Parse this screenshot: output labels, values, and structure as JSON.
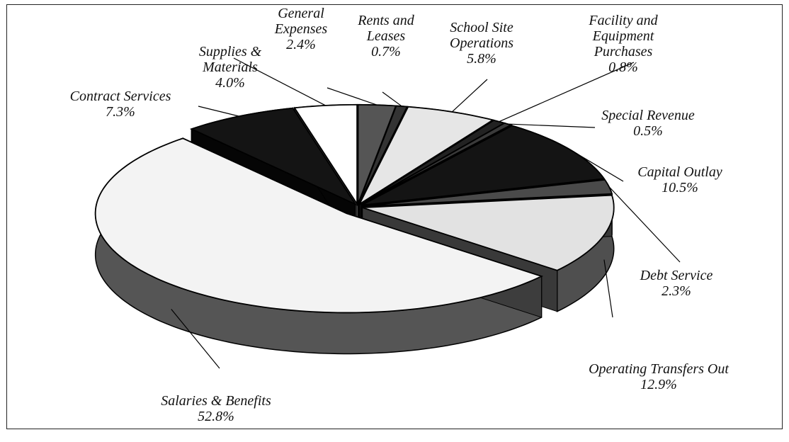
{
  "chart_data": {
    "type": "pie",
    "categories": [
      "General Expenses",
      "Rents and Leases",
      "School Site Operations",
      "Facility and Equipment Purchases",
      "Special Revenue",
      "Capital Outlay",
      "Debt Service",
      "Operating Transfers Out",
      "Salaries & Benefits",
      "Contract Services",
      "Supplies & Materials"
    ],
    "values": [
      2.4,
      0.7,
      5.8,
      0.8,
      0.5,
      10.5,
      2.3,
      12.9,
      52.8,
      7.3,
      4.0
    ],
    "value_labels": [
      "2.4%",
      "0.7%",
      "5.8%",
      "0.8%",
      "0.5%",
      "10.5%",
      "2.3%",
      "12.9%",
      "52.8%",
      "7.3%",
      "4.0%"
    ],
    "colors": [
      "#555555",
      "#333333",
      "#e6e6e6",
      "#222222",
      "#3a3a3a",
      "#141414",
      "#4a4a4a",
      "#e2e2e2",
      "#f3f3f3",
      "#141414",
      "#ffffff"
    ]
  }
}
